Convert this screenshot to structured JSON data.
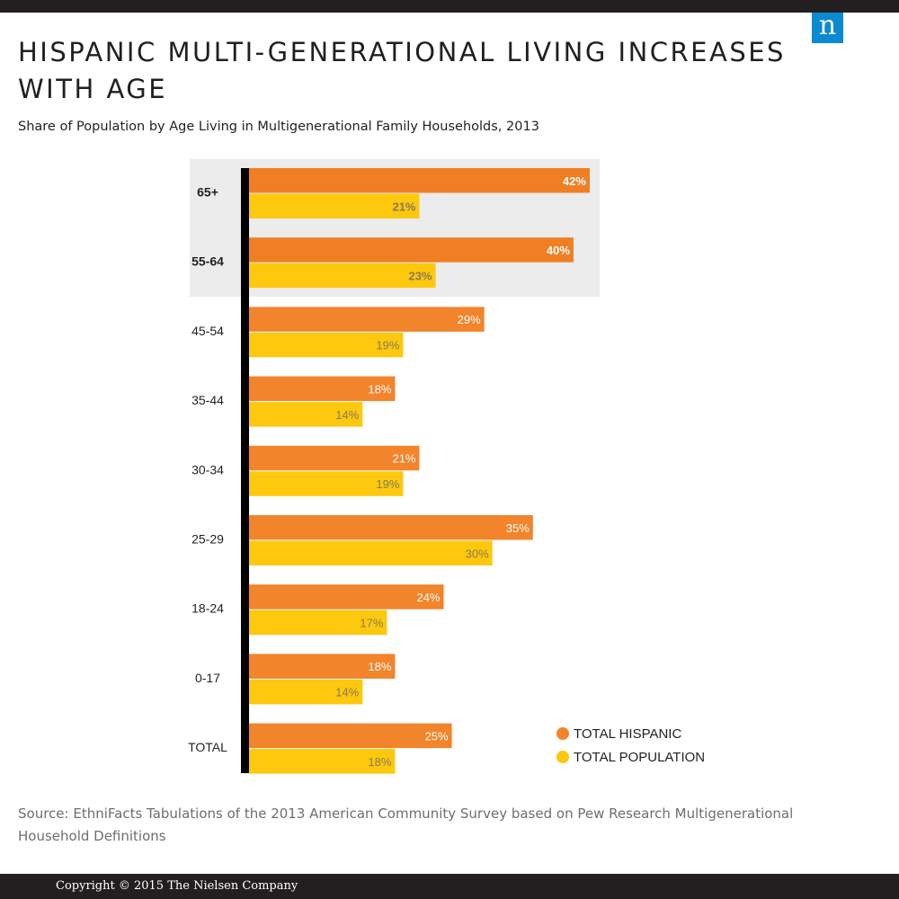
{
  "logo": {
    "letter": "n",
    "color": "#0a8ad1"
  },
  "title": "HISPANIC MULTI-GENERATIONAL LIVING INCREASES WITH AGE",
  "subtitle": "Share of Population by Age Living in Multigenerational Family Households, 2013",
  "legend": {
    "placement": "bottom-right",
    "items": [
      {
        "label": "TOTAL HISPANIC",
        "color": "#f2842b"
      },
      {
        "label": "TOTAL POPULATION",
        "color": "#fdc80d"
      }
    ]
  },
  "source": "Source: EthniFacts Tabulations of the 2013 American Community Survey based on Pew Research Multigenerational Household Definitions",
  "copyright": "Copyright © 2015 The Nielsen Company",
  "chart_data": {
    "type": "bar",
    "orientation": "horizontal",
    "categories": [
      "65+",
      "55-64",
      "45-54",
      "35-44",
      "30-34",
      "25-29",
      "18-24",
      "0-17",
      "TOTAL"
    ],
    "highlighted_categories": [
      "65+",
      "55-64"
    ],
    "unit": "%",
    "xlim": [
      0,
      45
    ],
    "grid": false,
    "series": [
      {
        "name": "TOTAL HISPANIC",
        "color": "#f2842b",
        "highlight_color": "#f07f23",
        "values": [
          42,
          40,
          29,
          18,
          21,
          35,
          24,
          18,
          25
        ],
        "labels": [
          "42%",
          "40%",
          "29%",
          "18%",
          "21%",
          "35%",
          "24%",
          "18%",
          "25%"
        ]
      },
      {
        "name": "TOTAL POPULATION",
        "color": "#fdc80d",
        "values": [
          21,
          23,
          19,
          14,
          19,
          30,
          17,
          14,
          18
        ],
        "labels": [
          "21%",
          "23%",
          "19%",
          "14%",
          "19%",
          "30%",
          "17%",
          "14%",
          "18%"
        ]
      }
    ]
  }
}
